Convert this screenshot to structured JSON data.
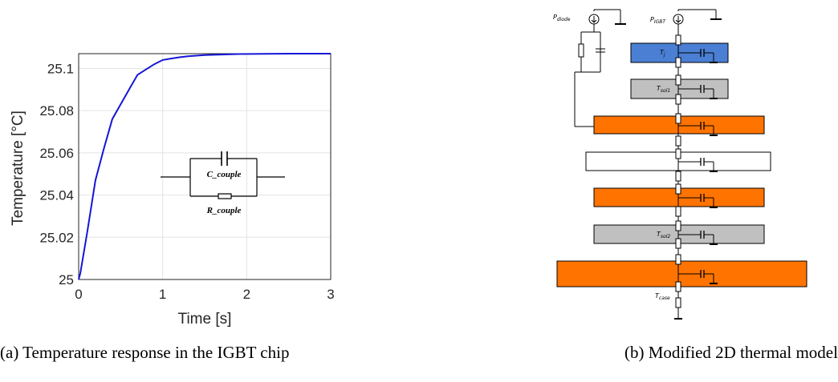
{
  "chart_data": {
    "type": "line",
    "xlabel": "Time [s]",
    "ylabel": "Temperature [°C]",
    "xlim": [
      0,
      3
    ],
    "ylim": [
      25,
      25.107
    ],
    "xticks": [
      0,
      1,
      2,
      3
    ],
    "yticks": [
      25,
      25.02,
      25.04,
      25.06,
      25.08,
      25.1
    ],
    "xtick_labels": [
      "0",
      "1",
      "2",
      "3"
    ],
    "ytick_labels": [
      "25",
      "25.02",
      "25.04",
      "25.06",
      "25.08",
      "25.1"
    ],
    "grid": true,
    "series_color": "#1515d6",
    "series": [
      {
        "x": [
          0,
          0.02,
          0.05,
          0.1,
          0.2,
          0.3,
          0.4,
          0.5,
          0.6,
          0.7,
          0.8,
          0.9,
          1.0,
          1.1,
          1.2,
          1.3,
          1.5,
          1.7,
          1.9,
          2.2,
          2.5,
          2.8,
          3.0
        ],
        "y": [
          25.0,
          25.003,
          25.01,
          25.022,
          25.047,
          25.062,
          25.076,
          25.083,
          25.09,
          25.097,
          25.0995,
          25.102,
          25.104,
          25.1047,
          25.1053,
          25.1058,
          25.1063,
          25.1066,
          25.1068,
          25.1069,
          25.107,
          25.107,
          25.107
        ]
      }
    ]
  },
  "inset": {
    "capacitor_label": "C_couple",
    "resistor_label": "R_couple"
  },
  "diagram": {
    "labels": {
      "p_diode_main": "P",
      "p_diode_sub": "diode",
      "p_igbt_main": "P",
      "p_igbt_sub": "IGBT",
      "tj_main": "T",
      "tj_sub": "j",
      "tsol1_main": "T",
      "tsol1_sub": "sol1",
      "tsol2_main": "T",
      "tsol2_sub": "sol2",
      "tcase_main": "T",
      "tcase_sub": "case"
    },
    "colors": {
      "blue": "#4a7fd4",
      "gray": "#c0c0c0",
      "orange": "#ff7300",
      "white": "#ffffff"
    }
  },
  "captions": {
    "a": "(a) Temperature response in the IGBT chip",
    "b": "(b) Modified 2D thermal model"
  }
}
